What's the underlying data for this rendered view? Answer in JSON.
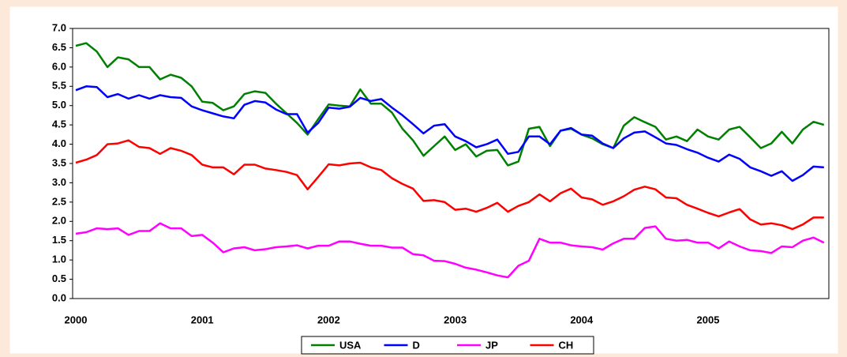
{
  "chart_data": {
    "type": "line",
    "categories": [
      "2000",
      null,
      null,
      null,
      null,
      null,
      null,
      null,
      null,
      null,
      null,
      null,
      "2001",
      null,
      null,
      null,
      null,
      null,
      null,
      null,
      null,
      null,
      null,
      null,
      "2002",
      null,
      null,
      null,
      null,
      null,
      null,
      null,
      null,
      null,
      null,
      null,
      "2003",
      null,
      null,
      null,
      null,
      null,
      null,
      null,
      null,
      null,
      null,
      null,
      "2004",
      null,
      null,
      null,
      null,
      null,
      null,
      null,
      null,
      null,
      null,
      null,
      "2005",
      null,
      null,
      null,
      null,
      null,
      null,
      null,
      null,
      null,
      null,
      null
    ],
    "series": [
      {
        "name": "USA",
        "color": "#008000",
        "values": [
          6.55,
          6.62,
          6.4,
          6.0,
          6.25,
          6.2,
          6.0,
          6.0,
          5.68,
          5.8,
          5.72,
          5.5,
          5.1,
          5.07,
          4.88,
          4.98,
          5.3,
          5.37,
          5.33,
          5.05,
          4.8,
          4.55,
          4.25,
          4.65,
          5.03,
          5.0,
          4.98,
          5.42,
          5.05,
          5.05,
          4.82,
          4.4,
          4.1,
          3.7,
          3.95,
          4.2,
          3.85,
          4.0,
          3.68,
          3.83,
          3.85,
          3.45,
          3.55,
          4.4,
          4.45,
          3.95,
          4.35,
          4.4,
          4.25,
          4.15,
          4.0,
          3.9,
          4.48,
          4.7,
          4.57,
          4.45,
          4.12,
          4.2,
          4.08,
          4.38,
          4.2,
          4.12,
          4.38,
          4.45,
          4.18,
          3.9,
          4.02,
          4.32,
          4.02,
          4.38,
          4.58,
          4.5
        ]
      },
      {
        "name": "D",
        "color": "#0000ff",
        "values": [
          5.4,
          5.5,
          5.48,
          5.22,
          5.3,
          5.18,
          5.27,
          5.18,
          5.27,
          5.22,
          5.2,
          4.98,
          4.88,
          4.8,
          4.72,
          4.67,
          5.02,
          5.12,
          5.08,
          4.9,
          4.78,
          4.78,
          4.3,
          4.55,
          4.95,
          4.92,
          4.97,
          5.2,
          5.12,
          5.17,
          4.95,
          4.75,
          4.52,
          4.28,
          4.48,
          4.52,
          4.2,
          4.08,
          3.92,
          4.0,
          4.12,
          3.75,
          3.8,
          4.2,
          4.2,
          4.0,
          4.35,
          4.42,
          4.25,
          4.22,
          4.02,
          3.9,
          4.15,
          4.3,
          4.33,
          4.18,
          4.02,
          3.98,
          3.87,
          3.78,
          3.65,
          3.55,
          3.73,
          3.62,
          3.4,
          3.3,
          3.18,
          3.3,
          3.05,
          3.2,
          3.42,
          3.4
        ]
      },
      {
        "name": "JP",
        "color": "#ff00ff",
        "values": [
          1.68,
          1.72,
          1.82,
          1.8,
          1.82,
          1.65,
          1.75,
          1.75,
          1.95,
          1.82,
          1.82,
          1.62,
          1.65,
          1.45,
          1.2,
          1.3,
          1.33,
          1.25,
          1.28,
          1.33,
          1.35,
          1.38,
          1.3,
          1.37,
          1.37,
          1.48,
          1.48,
          1.42,
          1.37,
          1.37,
          1.32,
          1.32,
          1.15,
          1.12,
          0.98,
          0.97,
          0.9,
          0.8,
          0.75,
          0.68,
          0.6,
          0.55,
          0.85,
          0.98,
          1.55,
          1.45,
          1.45,
          1.38,
          1.35,
          1.33,
          1.27,
          1.43,
          1.55,
          1.55,
          1.83,
          1.87,
          1.55,
          1.5,
          1.52,
          1.45,
          1.45,
          1.3,
          1.48,
          1.35,
          1.25,
          1.23,
          1.18,
          1.35,
          1.33,
          1.5,
          1.58,
          1.45
        ]
      },
      {
        "name": "CH",
        "color": "#ff0000",
        "values": [
          3.52,
          3.6,
          3.72,
          4.0,
          4.02,
          4.1,
          3.93,
          3.9,
          3.75,
          3.9,
          3.83,
          3.72,
          3.47,
          3.4,
          3.4,
          3.22,
          3.47,
          3.47,
          3.37,
          3.33,
          3.28,
          3.2,
          2.83,
          3.15,
          3.48,
          3.45,
          3.5,
          3.52,
          3.4,
          3.33,
          3.12,
          2.97,
          2.85,
          2.53,
          2.55,
          2.5,
          2.3,
          2.33,
          2.25,
          2.35,
          2.48,
          2.25,
          2.4,
          2.5,
          2.7,
          2.52,
          2.73,
          2.85,
          2.62,
          2.57,
          2.43,
          2.52,
          2.65,
          2.82,
          2.9,
          2.83,
          2.62,
          2.6,
          2.43,
          2.33,
          2.22,
          2.13,
          2.23,
          2.32,
          2.05,
          1.92,
          1.95,
          1.9,
          1.8,
          1.92,
          2.1,
          2.1
        ]
      }
    ],
    "ylim": [
      0,
      7
    ],
    "yticks": [
      {
        "value": 0,
        "label": "0.0"
      },
      0.5,
      {
        "value": 1,
        "label": "1.0"
      },
      1.5,
      {
        "value": 2,
        "label": "2.0"
      },
      2.5,
      {
        "value": 3,
        "label": "3.0"
      },
      3.5,
      {
        "value": 4,
        "label": "4.0"
      },
      4.5,
      {
        "value": 5,
        "label": "5.0"
      },
      5.5,
      {
        "value": 6,
        "label": "6.0"
      },
      6.5,
      {
        "value": 7,
        "label": "7.0"
      }
    ],
    "grid": false,
    "legend": "bottom"
  }
}
